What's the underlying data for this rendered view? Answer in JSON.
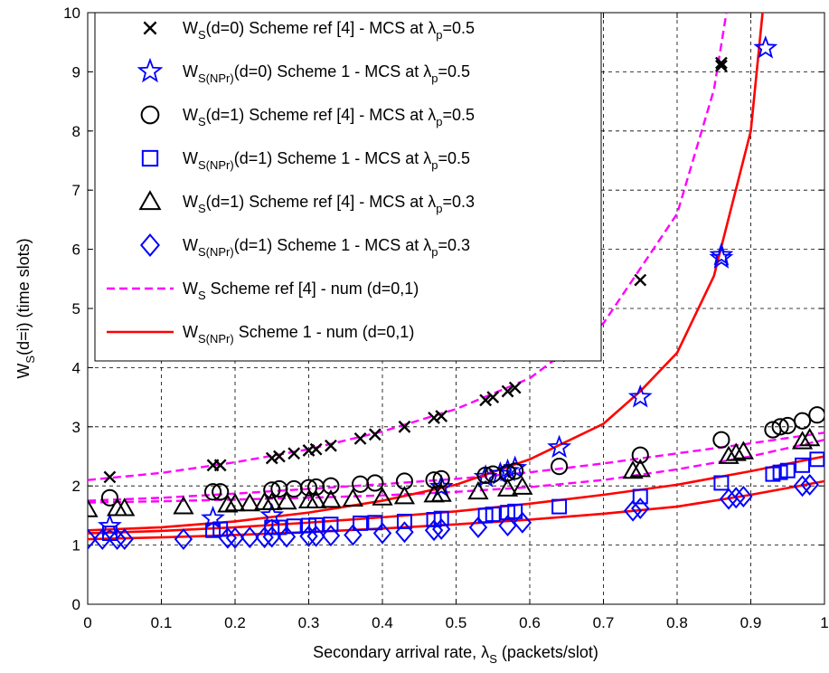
{
  "chart_data": {
    "type": "line",
    "xlabel": {
      "main": "Secondary arrival rate, λ",
      "sub": "S",
      "rest": " (packets/slot)"
    },
    "ylabel": {
      "main": "W",
      "sub": "S",
      "rest": "(d=i) (time slots)"
    },
    "xlim": [
      0,
      1
    ],
    "ylim": [
      0,
      10
    ],
    "xticks": [
      "0",
      "0.1",
      "0.2",
      "0.3",
      "0.4",
      "0.5",
      "0.6",
      "0.7",
      "0.8",
      "0.9",
      "1"
    ],
    "yticks": [
      "0",
      "1",
      "2",
      "3",
      "4",
      "5",
      "6",
      "7",
      "8",
      "9",
      "10"
    ],
    "grid": true,
    "legend_position": "top-left",
    "colors": {
      "magenta": "#ff00ff",
      "red": "#ff0000",
      "blue": "#0000ff",
      "black": "#000000"
    },
    "series": [
      {
        "legend": {
          "w": "W",
          "ws": "S",
          "mid": "(d=0) Scheme ref [4] - MCS at λ",
          "ls": "p",
          "end": "=0.5"
        },
        "marker": "x",
        "color": "#000000",
        "points": [
          [
            0.03,
            2.15
          ],
          [
            0.17,
            2.35
          ],
          [
            0.18,
            2.35
          ],
          [
            0.25,
            2.47
          ],
          [
            0.26,
            2.5
          ],
          [
            0.28,
            2.55
          ],
          [
            0.3,
            2.6
          ],
          [
            0.31,
            2.62
          ],
          [
            0.33,
            2.68
          ],
          [
            0.37,
            2.8
          ],
          [
            0.39,
            2.87
          ],
          [
            0.43,
            3.0
          ],
          [
            0.47,
            3.15
          ],
          [
            0.48,
            3.18
          ],
          [
            0.54,
            3.45
          ],
          [
            0.55,
            3.5
          ],
          [
            0.57,
            3.6
          ],
          [
            0.58,
            3.66
          ],
          [
            0.64,
            4.2
          ],
          [
            0.75,
            5.48
          ],
          [
            0.86,
            9.1
          ],
          [
            0.86,
            9.15
          ]
        ]
      },
      {
        "legend": {
          "w": "W",
          "ws": "S(NPr)",
          "mid": "(d=0) Scheme 1 - MCS at λ",
          "ls": "p",
          "end": "=0.5"
        },
        "marker": "star",
        "color": "#0000ff",
        "points": [
          [
            0.03,
            1.32
          ],
          [
            0.17,
            1.45
          ],
          [
            0.25,
            1.5
          ],
          [
            0.48,
            1.98
          ],
          [
            0.54,
            2.15
          ],
          [
            0.56,
            2.2
          ],
          [
            0.57,
            2.25
          ],
          [
            0.58,
            2.3
          ],
          [
            0.64,
            2.65
          ],
          [
            0.75,
            3.5
          ],
          [
            0.86,
            5.85
          ],
          [
            0.86,
            5.9
          ],
          [
            0.92,
            9.4
          ]
        ]
      },
      {
        "legend": {
          "w": "W",
          "ws": "S",
          "mid": "(d=1) Scheme ref [4] - MCS at λ",
          "ls": "p",
          "end": "=0.5"
        },
        "marker": "o",
        "color": "#000000",
        "points": [
          [
            0.03,
            1.8
          ],
          [
            0.17,
            1.9
          ],
          [
            0.18,
            1.9
          ],
          [
            0.25,
            1.93
          ],
          [
            0.26,
            1.95
          ],
          [
            0.28,
            1.95
          ],
          [
            0.3,
            1.97
          ],
          [
            0.31,
            1.98
          ],
          [
            0.33,
            2.0
          ],
          [
            0.37,
            2.03
          ],
          [
            0.39,
            2.05
          ],
          [
            0.43,
            2.08
          ],
          [
            0.47,
            2.1
          ],
          [
            0.48,
            2.12
          ],
          [
            0.54,
            2.18
          ],
          [
            0.55,
            2.2
          ],
          [
            0.57,
            2.22
          ],
          [
            0.58,
            2.25
          ],
          [
            0.64,
            2.33
          ],
          [
            0.75,
            2.52
          ],
          [
            0.86,
            2.78
          ],
          [
            0.93,
            2.95
          ],
          [
            0.94,
            3.0
          ],
          [
            0.95,
            3.02
          ],
          [
            0.97,
            3.1
          ],
          [
            0.99,
            3.2
          ]
        ]
      },
      {
        "legend": {
          "w": "W",
          "ws": "S(NPr)",
          "mid": "(d=1) Scheme 1 - MCS at λ",
          "ls": "p",
          "end": "=0.5"
        },
        "marker": "square",
        "color": "#0000ff",
        "points": [
          [
            0.03,
            1.2
          ],
          [
            0.17,
            1.25
          ],
          [
            0.18,
            1.27
          ],
          [
            0.25,
            1.3
          ],
          [
            0.26,
            1.3
          ],
          [
            0.28,
            1.32
          ],
          [
            0.3,
            1.33
          ],
          [
            0.31,
            1.34
          ],
          [
            0.33,
            1.35
          ],
          [
            0.37,
            1.37
          ],
          [
            0.39,
            1.38
          ],
          [
            0.43,
            1.4
          ],
          [
            0.47,
            1.43
          ],
          [
            0.48,
            1.45
          ],
          [
            0.54,
            1.5
          ],
          [
            0.55,
            1.52
          ],
          [
            0.57,
            1.55
          ],
          [
            0.58,
            1.57
          ],
          [
            0.64,
            1.65
          ],
          [
            0.75,
            1.82
          ],
          [
            0.86,
            2.05
          ],
          [
            0.93,
            2.2
          ],
          [
            0.94,
            2.23
          ],
          [
            0.95,
            2.26
          ],
          [
            0.97,
            2.35
          ],
          [
            0.99,
            2.45
          ]
        ]
      },
      {
        "legend": {
          "w": "W",
          "ws": "S",
          "mid": "(d=1) Scheme ref [4] - MCS at λ",
          "ls": "p",
          "end": "=0.3"
        },
        "marker": "triangle",
        "color": "#000000",
        "points": [
          [
            0.0,
            1.6
          ],
          [
            0.04,
            1.62
          ],
          [
            0.05,
            1.62
          ],
          [
            0.13,
            1.65
          ],
          [
            0.19,
            1.68
          ],
          [
            0.2,
            1.7
          ],
          [
            0.22,
            1.7
          ],
          [
            0.24,
            1.72
          ],
          [
            0.25,
            1.72
          ],
          [
            0.27,
            1.73
          ],
          [
            0.3,
            1.75
          ],
          [
            0.31,
            1.75
          ],
          [
            0.33,
            1.76
          ],
          [
            0.36,
            1.78
          ],
          [
            0.4,
            1.8
          ],
          [
            0.43,
            1.82
          ],
          [
            0.47,
            1.85
          ],
          [
            0.48,
            1.86
          ],
          [
            0.53,
            1.9
          ],
          [
            0.57,
            1.95
          ],
          [
            0.59,
            1.98
          ],
          [
            0.74,
            2.25
          ],
          [
            0.75,
            2.28
          ],
          [
            0.87,
            2.5
          ],
          [
            0.88,
            2.55
          ],
          [
            0.89,
            2.58
          ],
          [
            0.97,
            2.75
          ],
          [
            0.98,
            2.8
          ]
        ]
      },
      {
        "legend": {
          "w": "W",
          "ws": "S(NPr)",
          "mid": "(d=1) Scheme 1 - MCS at λ",
          "ls": "p",
          "end": "=0.3"
        },
        "marker": "diamond",
        "color": "#0000ff",
        "points": [
          [
            0.0,
            1.1
          ],
          [
            0.02,
            1.1
          ],
          [
            0.04,
            1.1
          ],
          [
            0.05,
            1.1
          ],
          [
            0.13,
            1.1
          ],
          [
            0.19,
            1.12
          ],
          [
            0.2,
            1.12
          ],
          [
            0.22,
            1.13
          ],
          [
            0.24,
            1.13
          ],
          [
            0.25,
            1.14
          ],
          [
            0.27,
            1.14
          ],
          [
            0.3,
            1.15
          ],
          [
            0.31,
            1.15
          ],
          [
            0.33,
            1.16
          ],
          [
            0.36,
            1.17
          ],
          [
            0.4,
            1.2
          ],
          [
            0.43,
            1.22
          ],
          [
            0.47,
            1.25
          ],
          [
            0.48,
            1.27
          ],
          [
            0.53,
            1.3
          ],
          [
            0.57,
            1.33
          ],
          [
            0.59,
            1.38
          ],
          [
            0.74,
            1.58
          ],
          [
            0.75,
            1.62
          ],
          [
            0.87,
            1.78
          ],
          [
            0.88,
            1.8
          ],
          [
            0.89,
            1.82
          ],
          [
            0.97,
            2.0
          ],
          [
            0.98,
            2.02
          ]
        ]
      },
      {
        "legend": {
          "w": "W",
          "ws": "S",
          "mid": " Scheme ref [4] - num (d=0,1)"
        },
        "line": "dashed",
        "color": "#ff00ff",
        "curves": [
          [
            [
              0.0,
              2.1
            ],
            [
              0.1,
              2.22
            ],
            [
              0.2,
              2.4
            ],
            [
              0.3,
              2.62
            ],
            [
              0.4,
              2.92
            ],
            [
              0.5,
              3.3
            ],
            [
              0.6,
              3.82
            ],
            [
              0.7,
              4.75
            ],
            [
              0.8,
              6.6
            ],
            [
              0.85,
              8.7
            ],
            [
              0.88,
              11.0
            ]
          ],
          [
            [
              0.0,
              1.75
            ],
            [
              0.1,
              1.8
            ],
            [
              0.2,
              1.87
            ],
            [
              0.3,
              1.95
            ],
            [
              0.4,
              2.03
            ],
            [
              0.5,
              2.12
            ],
            [
              0.6,
              2.23
            ],
            [
              0.7,
              2.38
            ],
            [
              0.8,
              2.55
            ],
            [
              0.9,
              2.72
            ],
            [
              1.0,
              2.9
            ]
          ],
          [
            [
              0.0,
              1.72
            ],
            [
              0.1,
              1.74
            ],
            [
              0.2,
              1.77
            ],
            [
              0.3,
              1.8
            ],
            [
              0.4,
              1.84
            ],
            [
              0.5,
              1.9
            ],
            [
              0.6,
              1.98
            ],
            [
              0.7,
              2.1
            ],
            [
              0.8,
              2.28
            ],
            [
              0.9,
              2.5
            ],
            [
              1.0,
              2.78
            ]
          ]
        ]
      },
      {
        "legend": {
          "w": "W",
          "ws": "S(NPr)",
          "mid": " Scheme 1 - num (d=0,1)"
        },
        "line": "solid",
        "color": "#ff0000",
        "curves": [
          [
            [
              0.0,
              1.25
            ],
            [
              0.1,
              1.3
            ],
            [
              0.2,
              1.4
            ],
            [
              0.3,
              1.55
            ],
            [
              0.4,
              1.75
            ],
            [
              0.5,
              2.02
            ],
            [
              0.6,
              2.45
            ],
            [
              0.7,
              3.05
            ],
            [
              0.75,
              3.6
            ],
            [
              0.8,
              4.25
            ],
            [
              0.85,
              5.55
            ],
            [
              0.9,
              8.0
            ],
            [
              0.92,
              10.5
            ]
          ],
          [
            [
              0.0,
              1.2
            ],
            [
              0.1,
              1.24
            ],
            [
              0.2,
              1.3
            ],
            [
              0.3,
              1.38
            ],
            [
              0.4,
              1.47
            ],
            [
              0.5,
              1.57
            ],
            [
              0.6,
              1.7
            ],
            [
              0.7,
              1.85
            ],
            [
              0.8,
              2.02
            ],
            [
              0.9,
              2.25
            ],
            [
              1.0,
              2.5
            ]
          ],
          [
            [
              0.0,
              1.1
            ],
            [
              0.1,
              1.13
            ],
            [
              0.2,
              1.17
            ],
            [
              0.3,
              1.22
            ],
            [
              0.4,
              1.28
            ],
            [
              0.5,
              1.35
            ],
            [
              0.6,
              1.43
            ],
            [
              0.7,
              1.53
            ],
            [
              0.8,
              1.65
            ],
            [
              0.9,
              1.85
            ],
            [
              1.0,
              2.08
            ]
          ]
        ]
      }
    ]
  }
}
